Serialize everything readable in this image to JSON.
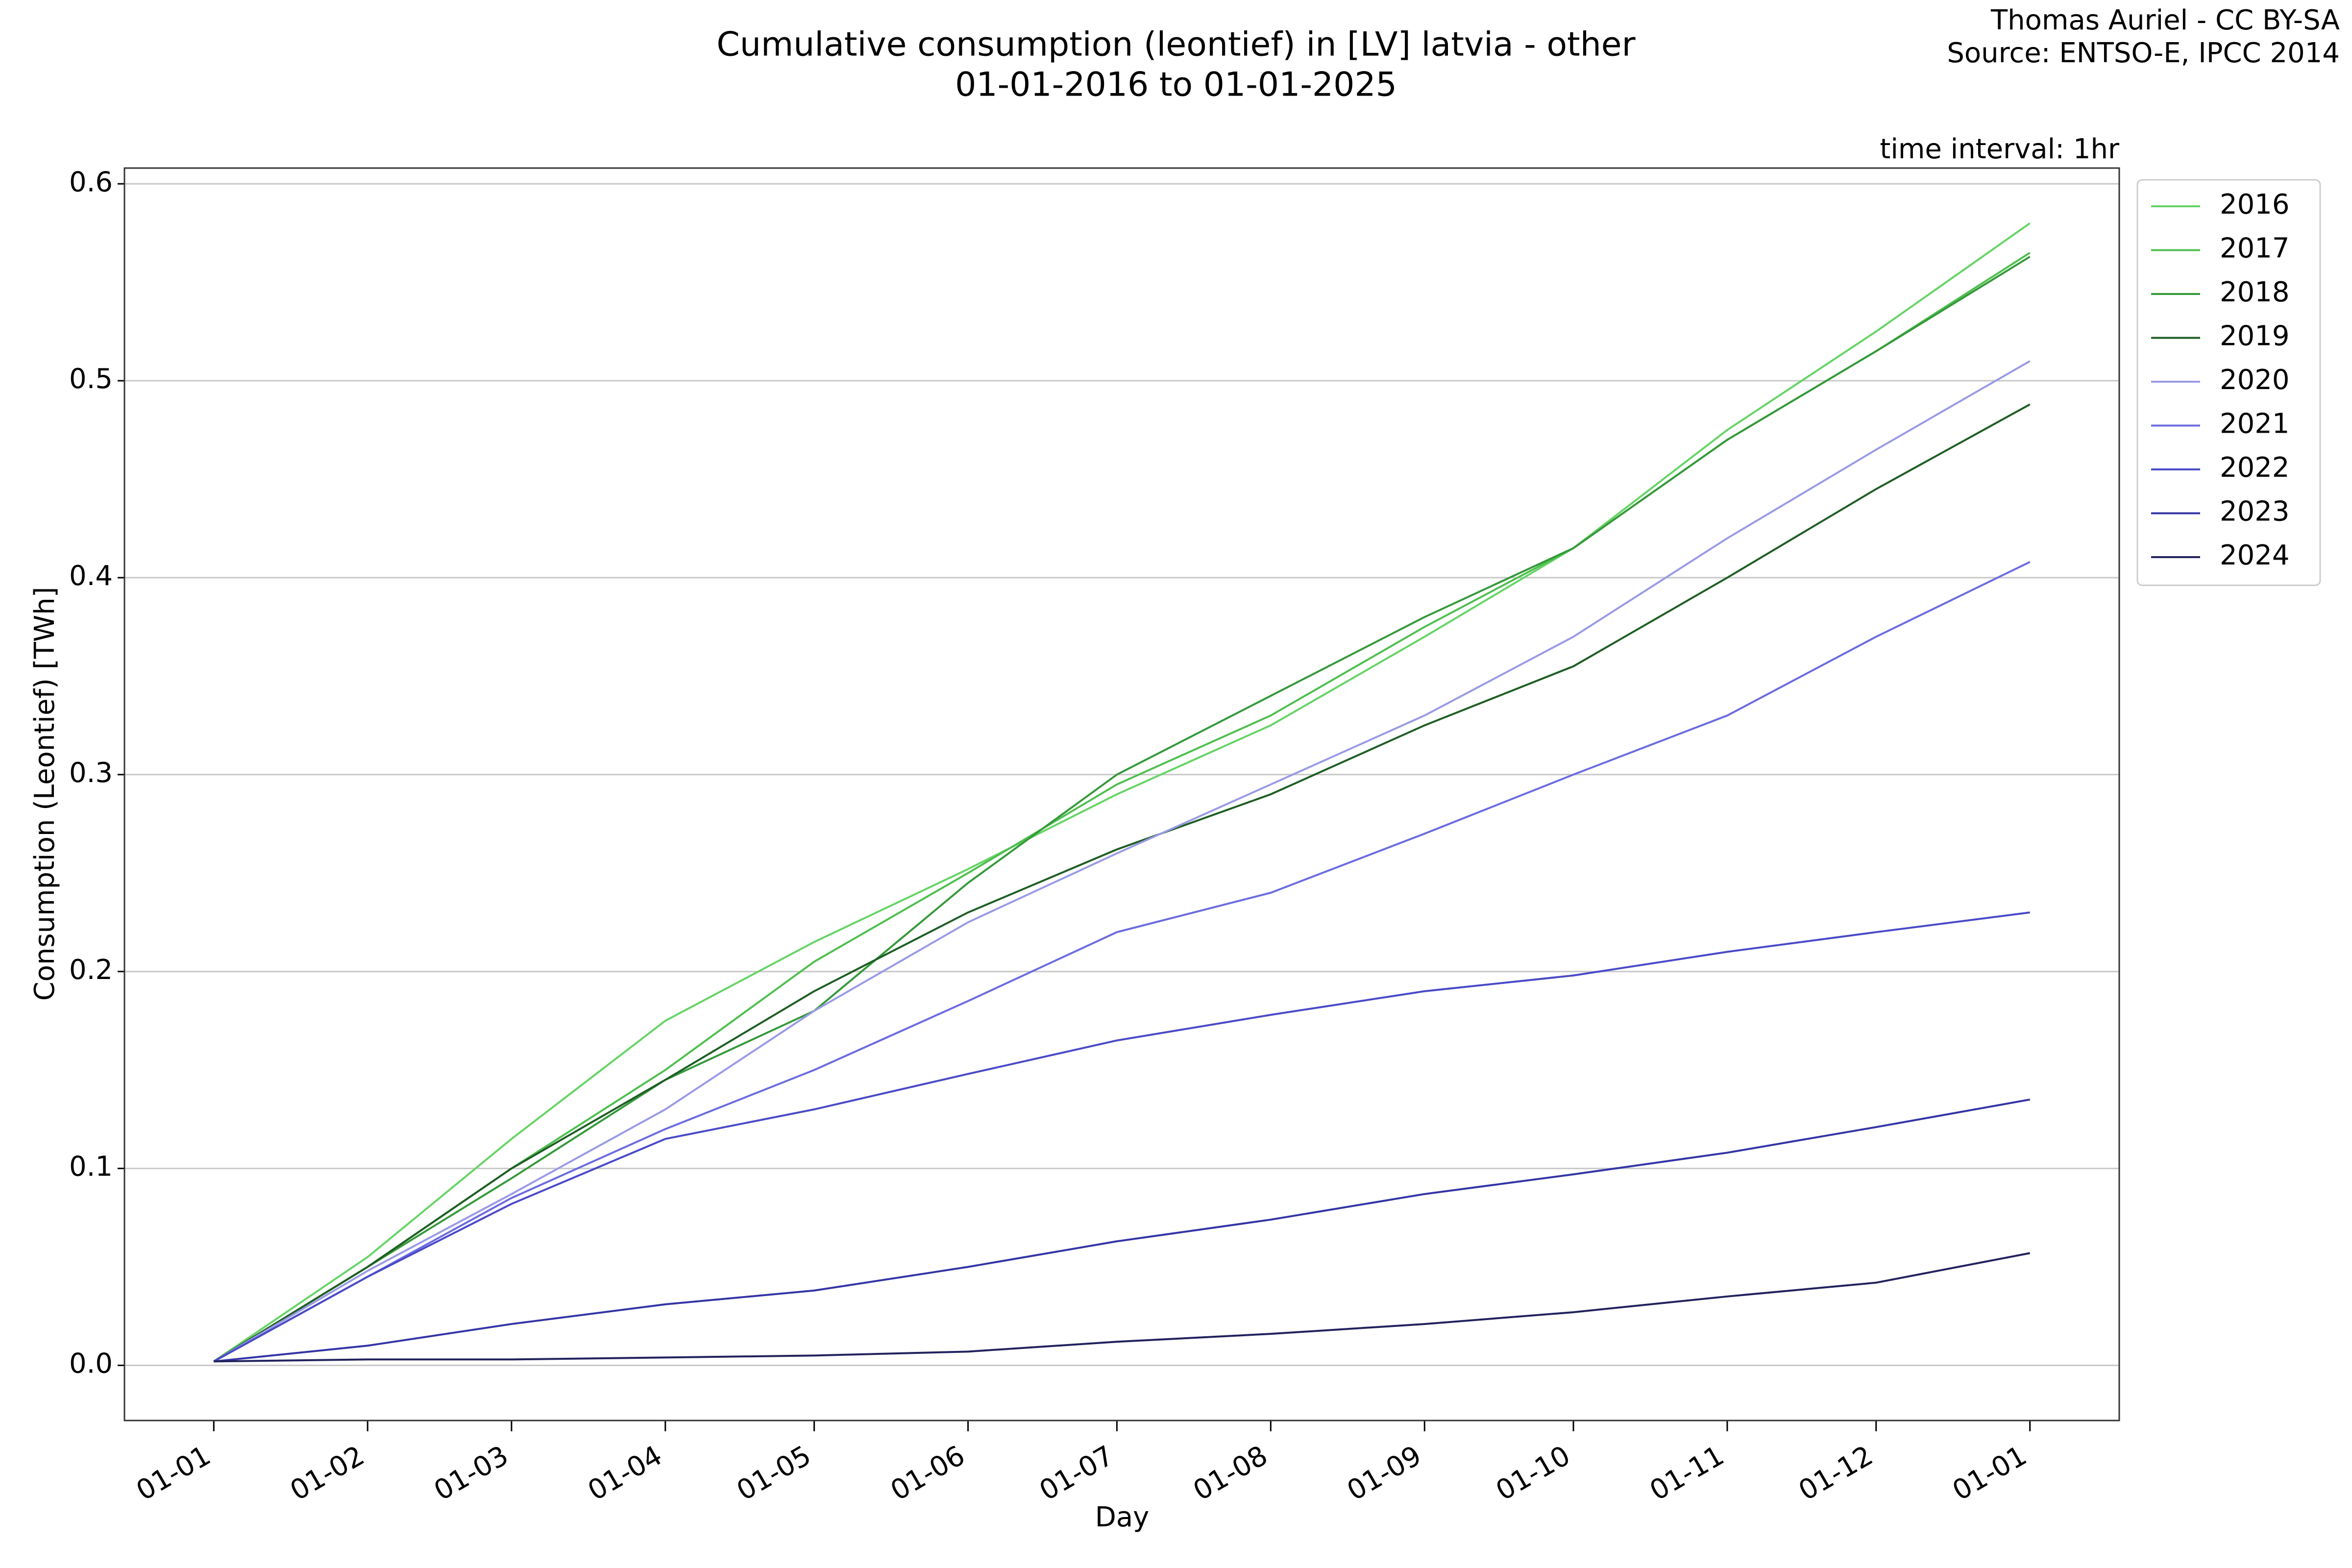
{
  "chart_data": {
    "type": "line",
    "title": "Cumulative consumption (leontief) in [LV] latvia - other",
    "subtitle": "01-01-2016 to 01-01-2025",
    "credit": "Thomas Auriel - CC BY-SA",
    "source": "Source: ENTSO-E, IPCC 2014",
    "annotation": "time interval: 1hr",
    "xlabel": "Day",
    "ylabel": "Consumption (Leontief) [TWh]",
    "x": [
      0,
      31,
      60,
      91,
      121,
      152,
      182,
      213,
      244,
      274,
      305,
      335,
      366
    ],
    "xlim": [
      -18,
      384
    ],
    "xticks": [
      {
        "value": 0,
        "label": "01-01"
      },
      {
        "value": 31,
        "label": "01-02"
      },
      {
        "value": 60,
        "label": "01-03"
      },
      {
        "value": 91,
        "label": "01-04"
      },
      {
        "value": 121,
        "label": "01-05"
      },
      {
        "value": 152,
        "label": "01-06"
      },
      {
        "value": 182,
        "label": "01-07"
      },
      {
        "value": 213,
        "label": "01-08"
      },
      {
        "value": 244,
        "label": "01-09"
      },
      {
        "value": 274,
        "label": "01-10"
      },
      {
        "value": 305,
        "label": "01-11"
      },
      {
        "value": 335,
        "label": "01-12"
      },
      {
        "value": 366,
        "label": "01-01"
      }
    ],
    "ylim": [
      -0.028,
      0.608
    ],
    "yticks": [
      {
        "value": 0,
        "label": "0.0"
      },
      0.1,
      0.2,
      0.3,
      0.4,
      0.5,
      0.6
    ],
    "grid": true,
    "legend": "right",
    "series": [
      {
        "name": "2016",
        "color": "#66d466",
        "values": [
          0.002,
          0.055,
          0.115,
          0.175,
          0.215,
          0.252,
          0.29,
          0.325,
          0.37,
          0.415,
          0.475,
          0.525,
          0.58
        ]
      },
      {
        "name": "2017",
        "color": "#4fbf4f",
        "values": [
          0.002,
          0.05,
          0.1,
          0.15,
          0.205,
          0.25,
          0.295,
          0.33,
          0.375,
          0.415,
          0.47,
          0.515,
          0.565
        ]
      },
      {
        "name": "2018",
        "color": "#35993a",
        "values": [
          0.002,
          0.05,
          0.095,
          0.145,
          0.18,
          0.245,
          0.3,
          0.34,
          0.38,
          0.415,
          0.47,
          0.515,
          0.563
        ]
      },
      {
        "name": "2019",
        "color": "#1e5e24",
        "values": [
          0.002,
          0.05,
          0.1,
          0.145,
          0.19,
          0.23,
          0.262,
          0.29,
          0.325,
          0.355,
          0.4,
          0.445,
          0.488
        ]
      },
      {
        "name": "2020",
        "color": "#9a9ae6",
        "values": [
          0.002,
          0.048,
          0.087,
          0.13,
          0.18,
          0.225,
          0.26,
          0.295,
          0.33,
          0.37,
          0.42,
          0.465,
          0.51
        ]
      },
      {
        "name": "2021",
        "color": "#6b6be0",
        "values": [
          0.002,
          0.045,
          0.085,
          0.12,
          0.15,
          0.185,
          0.22,
          0.24,
          0.27,
          0.3,
          0.33,
          0.37,
          0.408
        ]
      },
      {
        "name": "2022",
        "color": "#4a4ac8",
        "values": [
          0.002,
          0.045,
          0.082,
          0.115,
          0.13,
          0.148,
          0.165,
          0.178,
          0.19,
          0.198,
          0.21,
          0.22,
          0.23
        ]
      },
      {
        "name": "2023",
        "color": "#3434a6",
        "values": [
          0.002,
          0.01,
          0.021,
          0.031,
          0.038,
          0.05,
          0.063,
          0.074,
          0.087,
          0.097,
          0.108,
          0.121,
          0.135
        ]
      },
      {
        "name": "2024",
        "color": "#22225e",
        "values": [
          0.002,
          0.003,
          0.003,
          0.004,
          0.005,
          0.007,
          0.012,
          0.016,
          0.021,
          0.027,
          0.035,
          0.042,
          0.057
        ]
      }
    ]
  }
}
